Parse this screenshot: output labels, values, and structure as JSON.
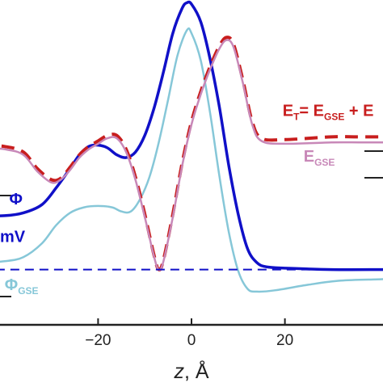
{
  "chart_data": {
    "type": "line",
    "title": "",
    "xlabel": {
      "var": "z",
      "unit": ", Å"
    },
    "ylabel": "",
    "xlim": [
      -41,
      41
    ],
    "ylim": [
      -1.35,
      1.0
    ],
    "grid": false,
    "x_ticks": [
      -20,
      0,
      20
    ],
    "x_tick_labels": [
      "−20",
      "0",
      "20"
    ],
    "baseline_y": -0.95,
    "series": [
      {
        "name": "Φ",
        "color": "#1010c8",
        "style": "solid",
        "width": 3.5,
        "points": [
          [
            -45,
            -0.56
          ],
          [
            -40,
            -0.56
          ],
          [
            -36,
            -0.54
          ],
          [
            -32,
            -0.48
          ],
          [
            -29,
            -0.36
          ],
          [
            -26,
            -0.22
          ],
          [
            -24,
            -0.12
          ],
          [
            -22,
            -0.06
          ],
          [
            -20,
            -0.05
          ],
          [
            -18,
            -0.07
          ],
          [
            -16,
            -0.12
          ],
          [
            -14,
            -0.14
          ],
          [
            -12,
            -0.1
          ],
          [
            -10,
            0.02
          ],
          [
            -8,
            0.22
          ],
          [
            -6,
            0.48
          ],
          [
            -4,
            0.76
          ],
          [
            -2,
            0.94
          ],
          [
            -1,
            0.98
          ],
          [
            0,
            0.97
          ],
          [
            2,
            0.84
          ],
          [
            4,
            0.57
          ],
          [
            6,
            0.22
          ],
          [
            8,
            -0.2
          ],
          [
            10,
            -0.55
          ],
          [
            12,
            -0.8
          ],
          [
            14,
            -0.9
          ],
          [
            16,
            -0.93
          ],
          [
            20,
            -0.94
          ],
          [
            30,
            -0.95
          ],
          [
            41,
            -0.95
          ],
          [
            45,
            -0.95
          ]
        ]
      },
      {
        "name": "Φ_GSE",
        "color": "#86c7d8",
        "style": "solid",
        "width": 2.5,
        "points": [
          [
            -45,
            -0.9
          ],
          [
            -40,
            -0.89
          ],
          [
            -36,
            -0.86
          ],
          [
            -32,
            -0.76
          ],
          [
            -29,
            -0.63
          ],
          [
            -26,
            -0.54
          ],
          [
            -23,
            -0.5
          ],
          [
            -20,
            -0.49
          ],
          [
            -17,
            -0.5
          ],
          [
            -15,
            -0.53
          ],
          [
            -13,
            -0.53
          ],
          [
            -11,
            -0.44
          ],
          [
            -9,
            -0.28
          ],
          [
            -7,
            -0.03
          ],
          [
            -5,
            0.28
          ],
          [
            -3,
            0.6
          ],
          [
            -1,
            0.78
          ],
          [
            0,
            0.76
          ],
          [
            2,
            0.56
          ],
          [
            4,
            0.18
          ],
          [
            6,
            -0.28
          ],
          [
            8,
            -0.68
          ],
          [
            10,
            -0.96
          ],
          [
            12,
            -1.09
          ],
          [
            14,
            -1.11
          ],
          [
            18,
            -1.1
          ],
          [
            25,
            -1.06
          ],
          [
            32,
            -1.03
          ],
          [
            41,
            -1.02
          ],
          [
            45,
            -1.01
          ]
        ]
      },
      {
        "name": "E_T",
        "color": "#c81e1e",
        "style": "dashed",
        "width": 4,
        "points": [
          [
            -45,
            -0.05
          ],
          [
            -40,
            -0.06
          ],
          [
            -36,
            -0.1
          ],
          [
            -33,
            -0.22
          ],
          [
            -30,
            -0.3
          ],
          [
            -28,
            -0.29
          ],
          [
            -26,
            -0.21
          ],
          [
            -24,
            -0.12
          ],
          [
            -22,
            -0.06
          ],
          [
            -20,
            -0.02
          ],
          [
            -18,
            0.02
          ],
          [
            -16,
            0.02
          ],
          [
            -14,
            -0.08
          ],
          [
            -12,
            -0.28
          ],
          [
            -10,
            -0.55
          ],
          [
            -8,
            -0.85
          ],
          [
            -7,
            -0.95
          ],
          [
            -6,
            -0.88
          ],
          [
            -4,
            -0.55
          ],
          [
            -2,
            -0.18
          ],
          [
            0,
            0.12
          ],
          [
            2,
            0.34
          ],
          [
            4,
            0.52
          ],
          [
            6,
            0.67
          ],
          [
            7.5,
            0.73
          ],
          [
            9,
            0.68
          ],
          [
            11,
            0.42
          ],
          [
            13,
            0.12
          ],
          [
            15,
            0.0
          ],
          [
            20,
            -0.01
          ],
          [
            30,
            0.01
          ],
          [
            36,
            0.01
          ],
          [
            41,
            0.01
          ],
          [
            45,
            0.01
          ]
        ]
      },
      {
        "name": "E_GSE",
        "color": "#c888b8",
        "style": "solid",
        "width": 2.5,
        "points": [
          [
            -45,
            -0.07
          ],
          [
            -40,
            -0.08
          ],
          [
            -36,
            -0.12
          ],
          [
            -33,
            -0.24
          ],
          [
            -30,
            -0.32
          ],
          [
            -28,
            -0.3
          ],
          [
            -26,
            -0.23
          ],
          [
            -24,
            -0.14
          ],
          [
            -22,
            -0.08
          ],
          [
            -20,
            -0.04
          ],
          [
            -18,
            0.0
          ],
          [
            -16,
            0.0
          ],
          [
            -14,
            -0.1
          ],
          [
            -12,
            -0.3
          ],
          [
            -10,
            -0.57
          ],
          [
            -8,
            -0.86
          ],
          [
            -7,
            -0.95
          ],
          [
            -6,
            -0.89
          ],
          [
            -4,
            -0.57
          ],
          [
            -2,
            -0.2
          ],
          [
            0,
            0.1
          ],
          [
            2,
            0.32
          ],
          [
            4,
            0.5
          ],
          [
            6,
            0.65
          ],
          [
            7.5,
            0.71
          ],
          [
            9,
            0.66
          ],
          [
            11,
            0.4
          ],
          [
            13,
            0.1
          ],
          [
            15,
            -0.02
          ],
          [
            20,
            -0.04
          ],
          [
            30,
            -0.03
          ],
          [
            36,
            -0.03
          ],
          [
            41,
            -0.03
          ],
          [
            45,
            -0.03
          ]
        ]
      },
      {
        "name": "mV",
        "color": "#1010c8",
        "style": "dashed",
        "width": 2,
        "points": [
          [
            -45,
            -0.95
          ],
          [
            45,
            -0.95
          ]
        ]
      }
    ],
    "annotations": [
      {
        "id": "phi-label",
        "text": "Φ",
        "sub": "",
        "color": "#1010c8",
        "x": -39,
        "y": -0.48
      },
      {
        "id": "mv-label",
        "text": "mV",
        "sub": "",
        "color": "#1010c8",
        "x": -41,
        "y": -0.75
      },
      {
        "id": "phi-gse-label",
        "text": "Φ",
        "sub": "GSE",
        "color": "#86c7d8",
        "x": -40,
        "y": -1.1
      },
      {
        "id": "et-label",
        "text": "E",
        "sub": "T",
        "tail": "= E",
        "sub2": "GSE",
        "tail2": " + E",
        "color": "#c81e1e",
        "x": 19.5,
        "y": 0.16
      },
      {
        "id": "egse-label",
        "text": "E",
        "sub": "GSE",
        "color": "#c888b8",
        "x": 24,
        "y": -0.17
      }
    ]
  }
}
